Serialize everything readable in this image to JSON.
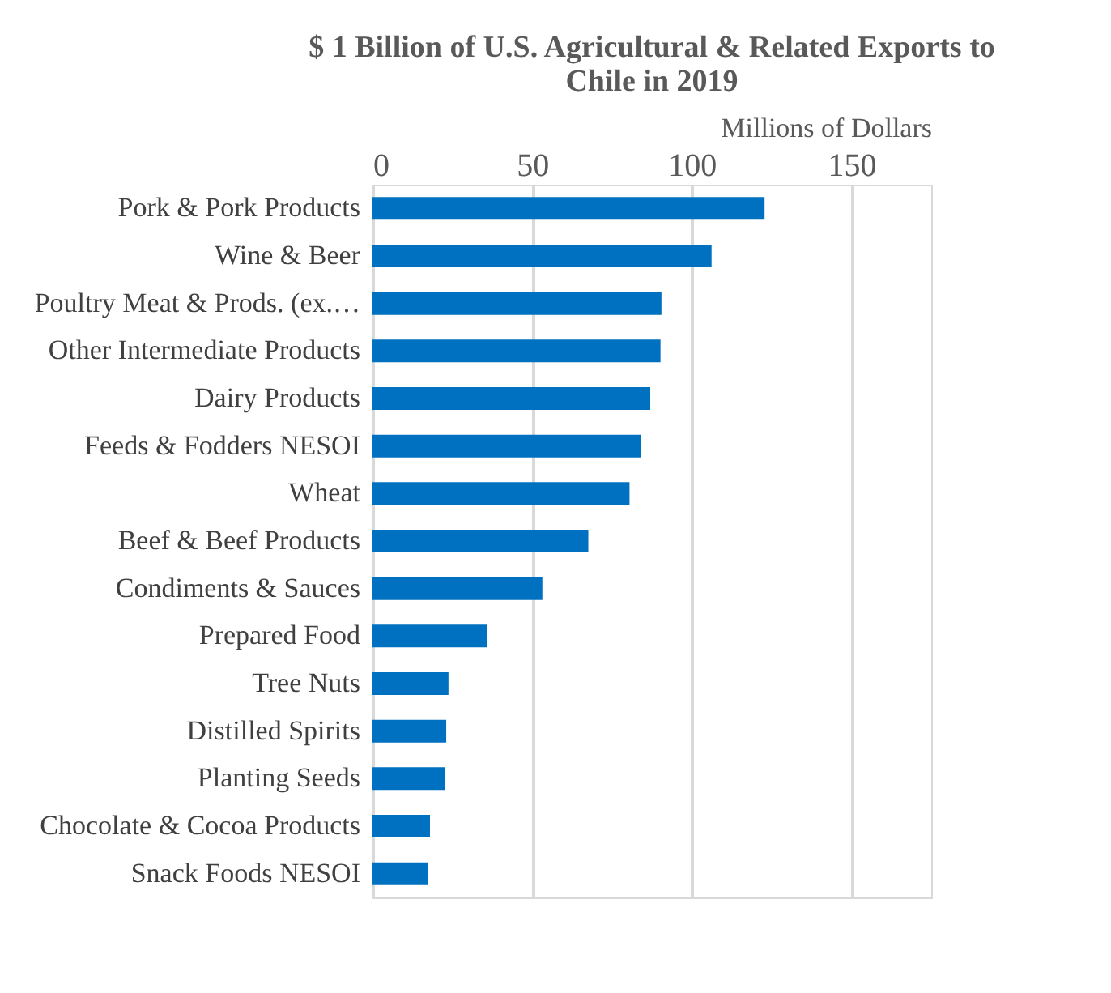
{
  "chart_data": {
    "type": "bar",
    "orientation": "horizontal",
    "title": "$ 1 Billion of U.S. Agricultural & Related Exports to Chile in 2019",
    "xlabel": "Millions of Dollars",
    "categories": [
      "Pork & Pork Products",
      "Wine & Beer",
      "Poultry Meat & Prods. (ex.…",
      "Other Intermediate Products",
      "Dairy Products",
      "Feeds & Fodders NESOI",
      "Wheat",
      "Beef & Beef Products",
      "Condiments & Sauces",
      "Prepared Food",
      "Tree Nuts",
      "Distilled Spirits",
      "Planting Seeds",
      "Chocolate & Cocoa Products",
      "Snack Foods NESOI"
    ],
    "values": [
      122.8,
      106.2,
      90.5,
      90.2,
      87.0,
      84.0,
      80.5,
      67.6,
      53.2,
      35.9,
      23.8,
      23.1,
      22.6,
      18.0,
      17.3
    ],
    "color": "#0070c0",
    "xlim": [
      0,
      175
    ],
    "xticks": [
      0,
      50,
      100,
      150
    ],
    "grid": "x"
  }
}
